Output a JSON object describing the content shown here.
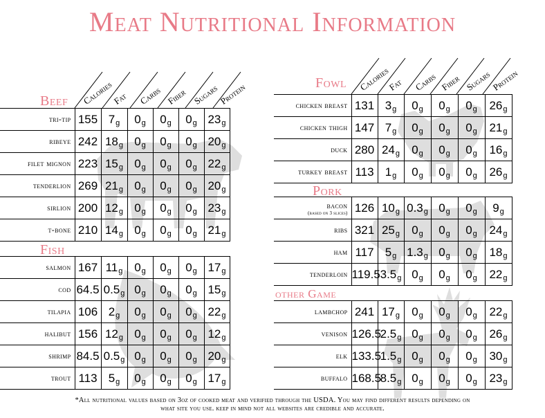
{
  "title": "Meat Nutritional Information",
  "columns": [
    "Calories",
    "Fat",
    "Carbs",
    "Fiber",
    "Sugars",
    "Protein"
  ],
  "unit": "g",
  "sections": {
    "beef": {
      "title": "Beef",
      "rows": [
        {
          "name": "tri-tip",
          "calories": "155",
          "fat": "7",
          "carbs": "0",
          "fiber": "0",
          "sugars": "0",
          "protein": "23"
        },
        {
          "name": "ribeye",
          "calories": "242",
          "fat": "18",
          "carbs": "0",
          "fiber": "0",
          "sugars": "0",
          "protein": "20"
        },
        {
          "name": "filet mignon",
          "calories": "223",
          "fat": "15",
          "carbs": "0",
          "fiber": "0",
          "sugars": "0",
          "protein": "22"
        },
        {
          "name": "tenderlion",
          "calories": "269",
          "fat": "21",
          "carbs": "0",
          "fiber": "0",
          "sugars": "0",
          "protein": "20"
        },
        {
          "name": "sirlion",
          "calories": "200",
          "fat": "12",
          "carbs": "0",
          "fiber": "0",
          "sugars": "0",
          "protein": "23"
        },
        {
          "name": "t-bone",
          "calories": "210",
          "fat": "14",
          "carbs": "0",
          "fiber": "0",
          "sugars": "0",
          "protein": "21"
        }
      ]
    },
    "fish": {
      "title": "Fish",
      "rows": [
        {
          "name": "salmon",
          "calories": "167",
          "fat": "11",
          "carbs": "0",
          "fiber": "0",
          "sugars": "0",
          "protein": "17"
        },
        {
          "name": "cod",
          "calories": "64.5",
          "fat": "0.5",
          "carbs": "0",
          "fiber": "0",
          "sugars": "0",
          "protein": "15"
        },
        {
          "name": "tilapia",
          "calories": "106",
          "fat": "2",
          "carbs": "0",
          "fiber": "0",
          "sugars": "0",
          "protein": "22"
        },
        {
          "name": "halibut",
          "calories": "156",
          "fat": "12",
          "carbs": "0",
          "fiber": "0",
          "sugars": "0",
          "protein": "12"
        },
        {
          "name": "shrimp",
          "calories": "84.5",
          "fat": "0.5",
          "carbs": "0",
          "fiber": "0",
          "sugars": "0",
          "protein": "20"
        },
        {
          "name": "trout",
          "calories": "113",
          "fat": "5",
          "carbs": "0",
          "fiber": "0",
          "sugars": "0",
          "protein": "17"
        }
      ]
    },
    "fowl": {
      "title": "Fowl",
      "rows": [
        {
          "name": "chicken breast",
          "calories": "131",
          "fat": "3",
          "carbs": "0",
          "fiber": "0",
          "sugars": "0",
          "protein": "26"
        },
        {
          "name": "chicken thigh",
          "calories": "147",
          "fat": "7",
          "carbs": "0",
          "fiber": "0",
          "sugars": "0",
          "protein": "21"
        },
        {
          "name": "duck",
          "calories": "280",
          "fat": "24",
          "carbs": "0",
          "fiber": "0",
          "sugars": "0",
          "protein": "16"
        },
        {
          "name": "turkey breast",
          "calories": "113",
          "fat": "1",
          "carbs": "0",
          "fiber": "0",
          "sugars": "0",
          "protein": "26"
        }
      ]
    },
    "pork": {
      "title": "Pork",
      "rows": [
        {
          "name": "bacon",
          "sub": "(based on 3 slices)",
          "calories": "126",
          "fat": "10",
          "carbs": "0.3",
          "fiber": "0",
          "sugars": "0",
          "protein": "9"
        },
        {
          "name": "ribs",
          "calories": "321",
          "fat": "25",
          "carbs": "0",
          "fiber": "0",
          "sugars": "0",
          "protein": "24"
        },
        {
          "name": "ham",
          "calories": "117",
          "fat": "5",
          "carbs": "1.3",
          "fiber": "0",
          "sugars": "0",
          "protein": "18"
        },
        {
          "name": "tenderloin",
          "calories": "119.5",
          "fat": "3.5",
          "carbs": "0",
          "fiber": "0",
          "sugars": "0",
          "protein": "22"
        }
      ]
    },
    "other": {
      "title": "other Game",
      "rows": [
        {
          "name": "lambchop",
          "calories": "241",
          "fat": "17",
          "carbs": "0",
          "fiber": "0",
          "sugars": "0",
          "protein": "22"
        },
        {
          "name": "venison",
          "calories": "126.5",
          "fat": "2.5",
          "carbs": "0",
          "fiber": "0",
          "sugars": "0",
          "protein": "26"
        },
        {
          "name": "elk",
          "calories": "133.5",
          "fat": "1.5",
          "carbs": "0",
          "fiber": "0",
          "sugars": "0",
          "protein": "30"
        },
        {
          "name": "buffalo",
          "calories": "168.5",
          "fat": "8.5",
          "carbs": "0",
          "fiber": "0",
          "sugars": "0",
          "protein": "23"
        }
      ]
    }
  },
  "footnote": {
    "line1": "*All nutritional values based on 3oz of cooked meat and verified through the USDA. You may find different results depending on",
    "line2": "what site you use. keep in mind not all websites are credible and accurate."
  },
  "colors": {
    "accent": "#e87a87",
    "silhouette": "#8a8a8a"
  }
}
